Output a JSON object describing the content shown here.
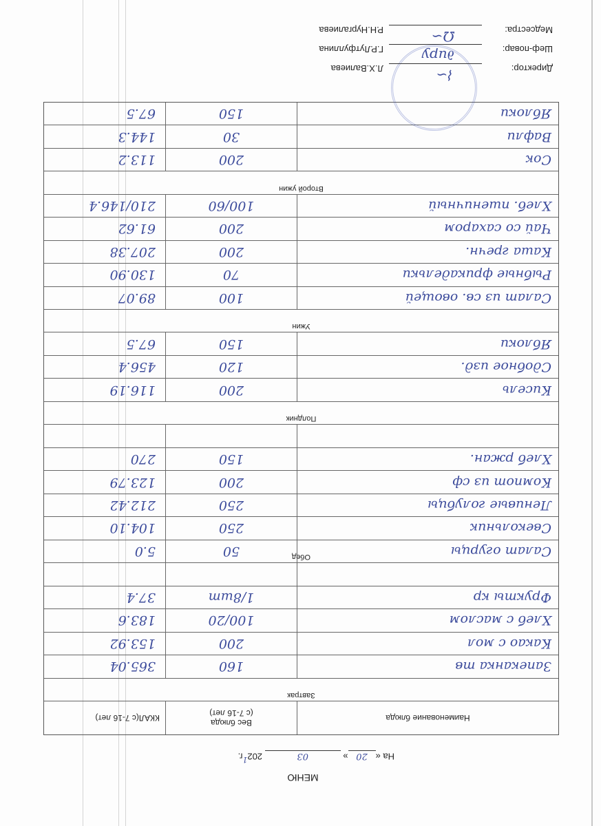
{
  "document": {
    "title": "МЕНЮ",
    "date": {
      "prefix": "На «",
      "day": "20",
      "mid": "»",
      "month": "03",
      "year_prefix": "202",
      "year_digit": "1",
      "suffix": "г."
    }
  },
  "table": {
    "headers": {
      "name": "Наименование блюда",
      "weight": "Вес блюда",
      "weight_sub": "(с 7-16 лет)",
      "kcal": "ККАЛ(с 7-16 лет)"
    },
    "rows": [
      {
        "label": "Завтрак",
        "name": "",
        "weight": "",
        "kcal": ""
      },
      {
        "label": "",
        "name": "Запеканка тв",
        "weight": "160",
        "kcal": "365.04"
      },
      {
        "label": "",
        "name": "Какао с мол",
        "weight": "200",
        "kcal": "153.92"
      },
      {
        "label": "",
        "name": "Хлеб с маслом",
        "weight": "100/20",
        "kcal": "183.6"
      },
      {
        "label": "",
        "name": "Фрукты кр",
        "weight": "1/8шт",
        "kcal": "37.4"
      },
      {
        "label": "",
        "name": "",
        "weight": "",
        "kcal": ""
      },
      {
        "label": "Обед",
        "name": "Салат огурцы",
        "weight": "50",
        "kcal": "5.0"
      },
      {
        "label": "",
        "name": "Свекольник",
        "weight": "250",
        "kcal": "104.10"
      },
      {
        "label": "",
        "name": "Ленивые голубцы",
        "weight": "250",
        "kcal": "212.42"
      },
      {
        "label": "",
        "name": "Компот из сф",
        "weight": "200",
        "kcal": "123.79"
      },
      {
        "label": "",
        "name": "Хлеб ржан.",
        "weight": "150",
        "kcal": "270"
      },
      {
        "label": "",
        "name": "",
        "weight": "",
        "kcal": ""
      },
      {
        "label": "Полдник",
        "name": "",
        "weight": "",
        "kcal": ""
      },
      {
        "label": "",
        "name": "Кисель",
        "weight": "200",
        "kcal": "116.19"
      },
      {
        "label": "",
        "name": "Сдобное изд.",
        "weight": "120",
        "kcal": "456.4"
      },
      {
        "label": "",
        "name": "Яблоки",
        "weight": "150",
        "kcal": "67.5"
      },
      {
        "label": "Ужин",
        "name": "",
        "weight": "",
        "kcal": ""
      },
      {
        "label": "",
        "name": "Салат из св. овощей",
        "weight": "100",
        "kcal": "89.07"
      },
      {
        "label": "",
        "name": "Рыбные фрикадельки",
        "weight": "70",
        "kcal": "130.90"
      },
      {
        "label": "",
        "name": "Каша гречн.",
        "weight": "200",
        "kcal": "207.38"
      },
      {
        "label": "",
        "name": "Чай со сахаром",
        "weight": "200",
        "kcal": "61.62"
      },
      {
        "label": "",
        "name": "Хлеб. пшеничный",
        "weight": "100/60",
        "kcal": "210/146.4"
      },
      {
        "label": "Второй ужин",
        "name": "",
        "weight": "",
        "kcal": ""
      },
      {
        "label": "",
        "name": "Сок",
        "weight": "200",
        "kcal": "113.2"
      },
      {
        "label": "",
        "name": "Вафли",
        "weight": "30",
        "kcal": "144.3"
      },
      {
        "label": "",
        "name": "Яблоки",
        "weight": "150",
        "kcal": "67.5"
      }
    ]
  },
  "signatures": [
    {
      "role": "Директор:",
      "name": "Л.Х.Валиева"
    },
    {
      "role": "Шеф-повар:",
      "name": "Г.Р.Лутфуллина"
    },
    {
      "role": "Медсестра:",
      "name": "Р.Н.Нургалиева"
    }
  ],
  "colors": {
    "ink": "#3d4c9c",
    "stamp": "#5a6ab4"
  }
}
